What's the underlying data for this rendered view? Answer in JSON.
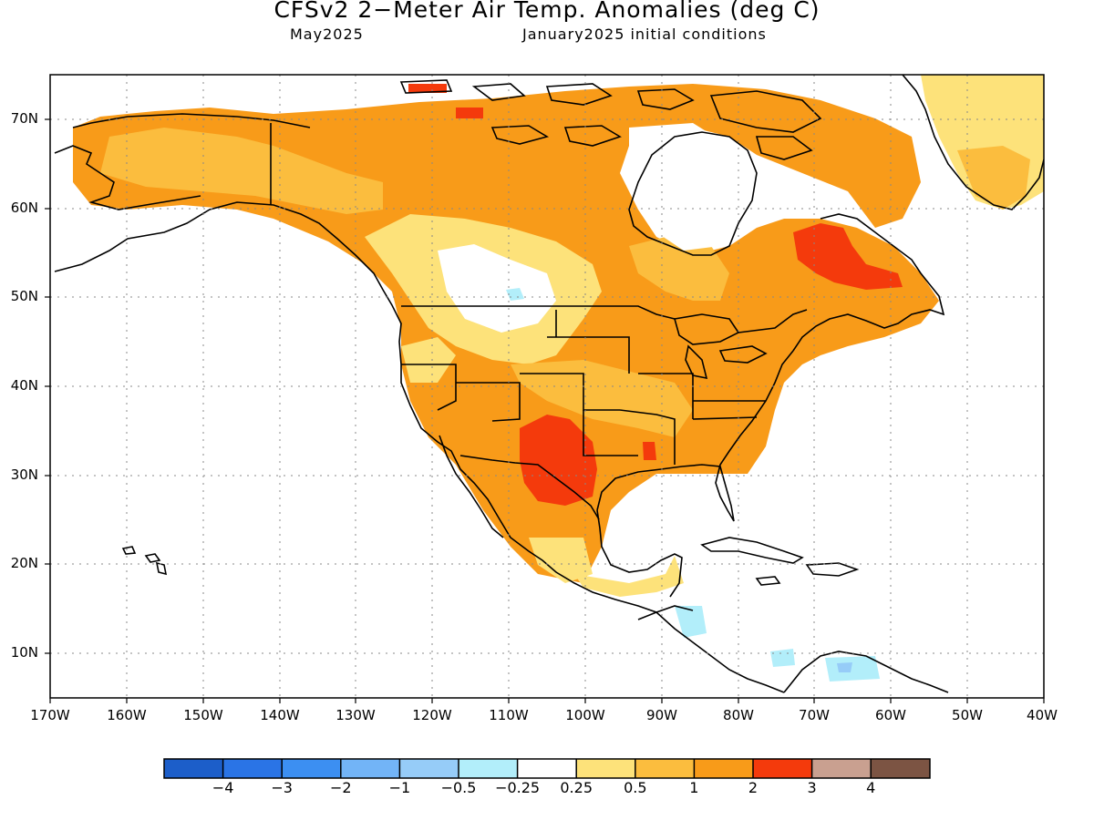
{
  "title": "CFSv2 2−Meter Air Temp. Anomalies (deg C)",
  "subtitle_left": "May2025",
  "subtitle_right": "January2025 initial conditions",
  "lat_labels": [
    "70N",
    "60N",
    "50N",
    "40N",
    "30N",
    "20N",
    "10N"
  ],
  "lon_labels": [
    "170W",
    "160W",
    "150W",
    "140W",
    "130W",
    "120W",
    "110W",
    "100W",
    "90W",
    "80W",
    "70W",
    "60W",
    "50W",
    "40W"
  ],
  "colorbar": {
    "colors": [
      "#1c5ec9",
      "#2a74e6",
      "#3c8ff2",
      "#72b4f7",
      "#96ccf8",
      "#b2eefa",
      "#ffffff",
      "#fde27a",
      "#fbbd3e",
      "#f89b19",
      "#f43a0c",
      "#c9a090",
      "#7c5443"
    ],
    "labels": [
      "−4",
      "−3",
      "−2",
      "−1",
      "−0.5",
      "−0.25",
      "0.25",
      "0.5",
      "1",
      "2",
      "3",
      "4"
    ]
  }
}
